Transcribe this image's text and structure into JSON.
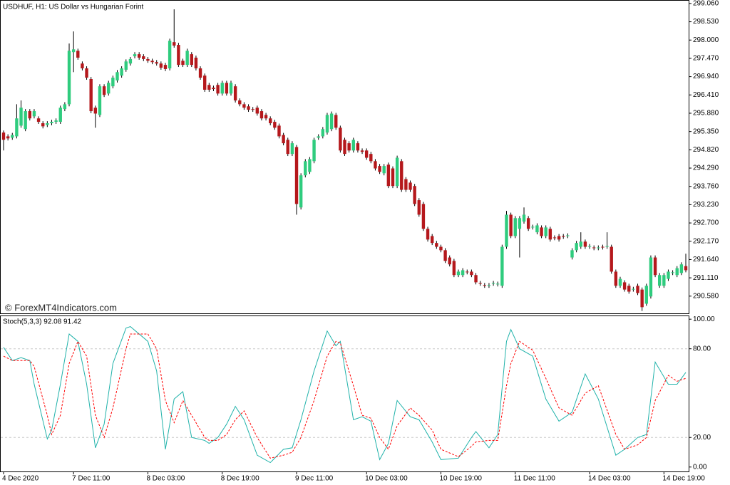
{
  "chart_data": [
    {
      "type": "candlestick",
      "title": "USDHUF, H1:  US Dollar vs Hungarian Forint",
      "watermark": "© ForexMT4Indicators.com",
      "up_color": "#2fcc7e",
      "down_color": "#b5181c",
      "wick_color": "#000000",
      "categories": [
        "4 Dec 2020",
        null,
        null,
        null,
        null,
        null,
        null,
        null,
        null,
        null,
        null,
        null,
        null,
        null,
        null,
        null,
        "7 Dec 11:00",
        null,
        null,
        null,
        null,
        null,
        null,
        null,
        null,
        null,
        null,
        null,
        null,
        null,
        null,
        null,
        null,
        "8 Dec 03:00",
        null,
        null,
        null,
        null,
        null,
        null,
        null,
        null,
        null,
        null,
        null,
        null,
        null,
        null,
        null,
        null,
        "8 Dec 19:00",
        null,
        null,
        null,
        null,
        null,
        null,
        null,
        null,
        null,
        null,
        null,
        null,
        null,
        null,
        null,
        null,
        "9 Dec 11:00",
        null,
        null,
        null,
        null,
        null,
        null,
        null,
        null,
        null,
        null,
        null,
        null,
        null,
        null,
        null,
        "10 Dec 03:00",
        null,
        null,
        null,
        null,
        null,
        null,
        null,
        null,
        null,
        null,
        null,
        null,
        null,
        null,
        null,
        null,
        "10 Dec 19:00",
        null,
        null,
        null,
        null,
        null,
        null,
        null,
        null,
        null,
        null,
        null,
        null,
        null,
        null,
        null,
        null,
        "11 Dec 11:00",
        null,
        null,
        null,
        null,
        null,
        null,
        null,
        null,
        null,
        null,
        null,
        null,
        null,
        null,
        null,
        null,
        "14 Dec 03:00",
        null,
        null,
        null,
        null,
        null,
        null,
        null,
        null,
        null,
        null,
        null,
        null,
        null,
        null,
        null,
        null,
        "14 Dec 19:00",
        null,
        null,
        null,
        null,
        null
      ],
      "open": [
        295.32,
        295.21,
        295.17,
        295.21,
        295.52,
        295.42,
        295.94,
        295.79,
        295.73,
        295.59,
        295.54,
        295.59,
        295.63,
        295.63,
        296.0,
        296.14,
        297.65,
        297.69,
        297.32,
        297.18,
        296.87,
        296.04,
        295.83,
        296.66,
        296.45,
        296.66,
        296.83,
        296.97,
        297.14,
        297.32,
        297.53,
        297.59,
        297.53,
        297.45,
        297.4,
        297.36,
        297.32,
        297.28,
        297.18,
        297.94,
        297.86,
        297.4,
        297.28,
        297.59,
        297.49,
        297.18,
        296.97,
        296.7,
        296.62,
        296.7,
        296.45,
        296.76,
        296.45,
        296.66,
        296.25,
        296.14,
        296.08,
        296.0,
        296.04,
        295.94,
        295.83,
        295.73,
        295.63,
        295.52,
        295.25,
        295.11,
        294.7,
        294.9,
        293.15,
        294.08,
        294.18,
        294.49,
        295.17,
        295.21,
        295.32,
        295.42,
        295.83,
        295.46,
        295.11,
        295.01,
        294.8,
        295.01,
        294.8,
        294.8,
        294.7,
        294.49,
        294.35,
        294.14,
        294.39,
        294.28,
        293.77,
        294.49,
        293.97,
        293.87,
        293.77,
        293.36,
        293.25,
        292.53,
        292.32,
        292.12,
        292.01,
        291.91,
        291.7,
        291.6,
        291.19,
        291.19,
        291.29,
        291.29,
        291.19,
        290.96,
        290.9,
        290.88,
        290.94,
        290.92,
        290.88,
        292.01,
        292.94,
        292.32,
        292.53,
        292.74,
        292.84,
        292.57,
        292.43,
        292.57,
        292.32,
        292.53,
        292.28,
        292.32,
        292.32,
        292.32,
        291.7,
        291.91,
        292.01,
        292.16,
        292.01,
        291.99,
        291.97,
        292.01,
        292.01,
        292.01,
        291.29,
        290.88,
        290.98,
        290.88,
        290.77,
        290.88,
        290.77,
        290.36,
        290.57,
        291.7,
        290.88,
        290.88,
        291.08,
        291.25,
        291.19,
        291.25,
        291.45
      ],
      "high": [
        295.38,
        295.27,
        295.31,
        296.14,
        296.25,
        296.0,
        296.0,
        296.0,
        295.79,
        295.65,
        295.65,
        295.69,
        295.73,
        296.1,
        296.2,
        297.9,
        298.25,
        297.75,
        297.38,
        297.24,
        296.93,
        296.1,
        296.72,
        296.72,
        296.82,
        296.97,
        297.13,
        297.24,
        297.44,
        297.51,
        297.65,
        297.65,
        297.59,
        297.51,
        297.46,
        297.42,
        297.38,
        297.34,
        298.04,
        298.89,
        297.92,
        297.46,
        297.75,
        297.65,
        297.55,
        297.24,
        297.03,
        296.76,
        296.68,
        296.76,
        296.82,
        296.82,
        296.82,
        296.72,
        296.31,
        296.2,
        296.14,
        296.06,
        296.1,
        296.0,
        295.89,
        295.79,
        295.69,
        295.58,
        295.31,
        295.17,
        295.07,
        294.96,
        294.14,
        294.55,
        294.61,
        295.17,
        295.27,
        295.48,
        295.89,
        295.93,
        295.89,
        295.52,
        295.17,
        295.07,
        295.17,
        295.07,
        294.86,
        294.86,
        294.76,
        294.55,
        294.41,
        294.41,
        294.45,
        294.34,
        294.65,
        294.55,
        294.03,
        293.93,
        293.83,
        293.42,
        293.31,
        292.59,
        292.38,
        292.18,
        292.07,
        291.97,
        291.76,
        291.66,
        291.35,
        291.39,
        291.35,
        291.35,
        291.25,
        291.02,
        290.96,
        290.96,
        291.02,
        291.0,
        292.07,
        293.05,
        293.0,
        292.9,
        292.9,
        293.15,
        292.9,
        292.65,
        292.69,
        292.63,
        292.63,
        292.59,
        292.34,
        292.38,
        292.38,
        292.4,
        291.97,
        292.18,
        292.43,
        292.22,
        292.09,
        292.05,
        292.05,
        292.07,
        292.43,
        292.07,
        291.35,
        291.14,
        291.04,
        290.94,
        290.85,
        290.94,
        290.83,
        290.94,
        291.76,
        291.76,
        291.25,
        291.25,
        291.35,
        291.33,
        291.45,
        291.56,
        291.81
      ],
      "low": [
        294.8,
        295.09,
        295.11,
        295.15,
        295.46,
        295.36,
        295.67,
        295.73,
        295.57,
        295.44,
        295.48,
        295.53,
        295.57,
        295.57,
        295.94,
        296.08,
        297.07,
        297.43,
        297.12,
        296.85,
        295.88,
        295.46,
        295.77,
        296.35,
        296.39,
        296.6,
        296.77,
        296.91,
        297.08,
        297.26,
        297.47,
        297.43,
        297.39,
        297.34,
        297.3,
        297.26,
        297.14,
        297.1,
        297.12,
        297.78,
        297.22,
        297.22,
        297.22,
        297.22,
        297.12,
        296.85,
        296.5,
        296.5,
        296.52,
        296.39,
        296.39,
        296.39,
        296.39,
        296.19,
        296.08,
        295.98,
        295.92,
        295.92,
        295.81,
        295.67,
        295.67,
        295.53,
        295.4,
        295.15,
        294.95,
        294.64,
        294.64,
        292.94,
        293.09,
        294.02,
        294.12,
        294.43,
        295.11,
        295.15,
        295.26,
        295.36,
        295.4,
        294.74,
        294.64,
        294.74,
        294.74,
        294.74,
        294.7,
        294.53,
        294.43,
        294.22,
        294.12,
        294.08,
        293.71,
        293.71,
        293.71,
        293.6,
        293.6,
        293.6,
        293.19,
        292.88,
        292.47,
        292.16,
        292.06,
        291.95,
        291.85,
        291.54,
        291.44,
        291.13,
        291.13,
        291.13,
        291.21,
        291.13,
        290.92,
        290.88,
        290.82,
        290.82,
        290.88,
        290.86,
        290.82,
        291.95,
        292.26,
        292.26,
        291.7,
        292.68,
        292.47,
        292.51,
        292.37,
        292.26,
        292.26,
        292.16,
        292.2,
        292.16,
        292.24,
        292.26,
        291.64,
        291.85,
        291.95,
        291.95,
        291.95,
        291.91,
        291.91,
        291.93,
        291.95,
        291.23,
        290.82,
        290.82,
        290.71,
        290.65,
        290.71,
        290.61,
        290.15,
        290.3,
        290.51,
        291.13,
        290.82,
        290.82,
        291.02,
        291.19,
        291.13,
        291.19,
        291.27
      ],
      "close": [
        295.11,
        295.15,
        295.25,
        295.73,
        296.04,
        295.94,
        295.73,
        295.94,
        295.63,
        295.5,
        295.59,
        295.63,
        295.67,
        296.04,
        296.14,
        297.69,
        297.73,
        297.49,
        297.18,
        296.91,
        295.94,
        295.87,
        296.66,
        296.41,
        296.76,
        296.91,
        297.07,
        297.18,
        297.38,
        297.45,
        297.59,
        297.49,
        297.45,
        297.4,
        297.36,
        297.32,
        297.2,
        297.16,
        297.98,
        297.84,
        297.28,
        297.28,
        297.69,
        297.28,
        297.18,
        296.91,
        296.56,
        296.56,
        296.58,
        296.45,
        296.76,
        296.45,
        296.76,
        296.25,
        296.14,
        296.04,
        295.98,
        295.98,
        295.87,
        295.73,
        295.73,
        295.59,
        295.46,
        295.21,
        295.01,
        294.7,
        295.01,
        293.25,
        294.08,
        294.49,
        294.55,
        295.11,
        295.21,
        295.42,
        295.83,
        295.87,
        295.46,
        294.8,
        294.7,
        294.8,
        295.11,
        294.8,
        294.76,
        294.59,
        294.49,
        294.28,
        294.18,
        294.35,
        293.77,
        293.77,
        294.59,
        293.66,
        293.66,
        293.66,
        293.25,
        292.94,
        292.53,
        292.22,
        292.12,
        292.01,
        291.91,
        291.6,
        291.5,
        291.19,
        291.29,
        291.33,
        291.27,
        291.19,
        290.98,
        290.94,
        290.88,
        290.9,
        290.96,
        290.94,
        292.01,
        292.94,
        292.32,
        292.84,
        292.84,
        292.94,
        292.53,
        292.59,
        292.63,
        292.32,
        292.57,
        292.22,
        292.26,
        292.22,
        292.3,
        292.34,
        291.91,
        292.12,
        292.16,
        292.01,
        292.03,
        291.97,
        291.99,
        291.99,
        292.03,
        291.29,
        290.88,
        291.08,
        290.77,
        290.71,
        290.79,
        290.67,
        290.26,
        290.88,
        291.7,
        291.19,
        291.19,
        291.19,
        291.29,
        291.27,
        291.39,
        291.5,
        291.33
      ],
      "ylim": [
        290.06,
        299.14
      ],
      "yticks": [
        {
          "value": 299.06,
          "label": "299.060"
        },
        {
          "value": 298.53,
          "label": "298.530"
        },
        {
          "value": 298.0,
          "label": "298.000"
        },
        {
          "value": 297.47,
          "label": "297.470"
        },
        {
          "value": 296.94,
          "label": "296.940"
        },
        {
          "value": 296.41,
          "label": "296.410"
        },
        {
          "value": 295.88,
          "label": "295.880"
        },
        {
          "value": 295.35,
          "label": "295.350"
        },
        {
          "value": 294.82,
          "label": "294.820"
        },
        {
          "value": 294.29,
          "label": "294.290"
        },
        {
          "value": 293.76,
          "label": "293.760"
        },
        {
          "value": 293.23,
          "label": "293.230"
        },
        {
          "value": 292.7,
          "label": "292.700"
        },
        {
          "value": 292.17,
          "label": "292.170"
        },
        {
          "value": 291.64,
          "label": "291.640"
        },
        {
          "value": 291.11,
          "label": "291.110"
        },
        {
          "value": 290.58,
          "label": "290.580"
        }
      ]
    },
    {
      "type": "line",
      "title": "Stoch(5,3,3) 92.08 91.42",
      "x": [
        0,
        2,
        4,
        6,
        7,
        10,
        11,
        13,
        15,
        17,
        19,
        21,
        23,
        25,
        28,
        29,
        33,
        35,
        37,
        39,
        41,
        43,
        46,
        47,
        49,
        51,
        53,
        55,
        58,
        61,
        64,
        66,
        68,
        71,
        74,
        76,
        77,
        80,
        82,
        84,
        86,
        88,
        90,
        93,
        95,
        98,
        100,
        104,
        107,
        108,
        111,
        113,
        115,
        116,
        118,
        121,
        124,
        127,
        130,
        133,
        136,
        140,
        142,
        145,
        147,
        149,
        152,
        154,
        156
      ],
      "series": [
        {
          "color": "#20b2aa",
          "dashed": false,
          "values": [
            81,
            72,
            74,
            72,
            56,
            19,
            25,
            56,
            90,
            85,
            56,
            13,
            29,
            70,
            94,
            95,
            85,
            65,
            12,
            46,
            51,
            20,
            18,
            16,
            20,
            29,
            41,
            32,
            8,
            3,
            12,
            13,
            32,
            65,
            92,
            82,
            85,
            32,
            34,
            31,
            5,
            16,
            45,
            34,
            32,
            17,
            5,
            6,
            20,
            24,
            13,
            22,
            85,
            93,
            80,
            75,
            46,
            31,
            37,
            63,
            46,
            8,
            12,
            20,
            22,
            71,
            56,
            56,
            64
          ]
        },
        {
          "color": "#ff0000",
          "dashed": true,
          "values": [
            75,
            72,
            72,
            72,
            68,
            35,
            22,
            35,
            70,
            85,
            75,
            35,
            20,
            40,
            80,
            90,
            90,
            80,
            45,
            30,
            45,
            35,
            20,
            18,
            18,
            22,
            32,
            38,
            20,
            6,
            8,
            10,
            20,
            45,
            75,
            85,
            84,
            55,
            35,
            33,
            20,
            12,
            28,
            40,
            35,
            25,
            12,
            7,
            14,
            17,
            18,
            18,
            55,
            70,
            85,
            79,
            60,
            40,
            35,
            50,
            55,
            22,
            12,
            15,
            20,
            45,
            62,
            58,
            60
          ]
        }
      ],
      "xlim": [
        0,
        156
      ],
      "ylim": [
        -3,
        102.5
      ],
      "yticks": [
        {
          "value": 100,
          "label": "100.00"
        },
        {
          "value": 80,
          "label": "80.00"
        },
        {
          "value": 20,
          "label": "20.00"
        },
        {
          "value": 0,
          "label": "0.00"
        }
      ],
      "levels": [
        80,
        20
      ]
    }
  ]
}
